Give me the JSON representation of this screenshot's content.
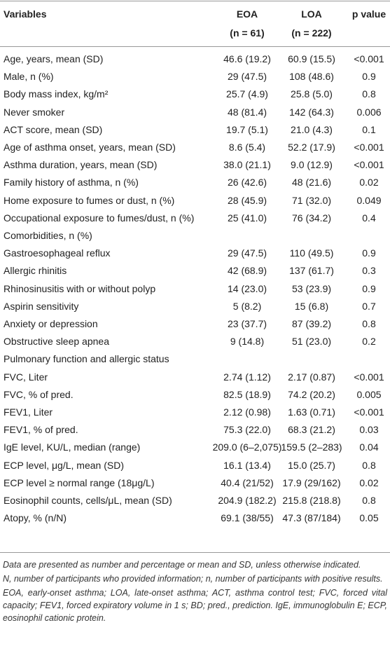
{
  "table": {
    "header": [
      "Variables",
      "EOA",
      "(n = 61)",
      "LOA",
      "(n = 222)",
      "p value"
    ],
    "rows": [
      [
        "Age, years, mean (SD)",
        "46.6 (19.2)",
        "60.9 (15.5)",
        "<0.001"
      ],
      [
        "Male, n (%)",
        "29 (47.5)",
        "108 (48.6)",
        "0.9"
      ],
      [
        "Body mass index, kg/m²",
        "25.7 (4.9)",
        "25.8 (5.0)",
        "0.8"
      ],
      [
        "Never smoker",
        "48 (81.4)",
        "142 (64.3)",
        "0.006"
      ],
      [
        "ACT score, mean (SD)",
        "19.7 (5.1)",
        "21.0 (4.3)",
        "0.1"
      ],
      [
        "Age of asthma onset, years, mean (SD)",
        "8.6 (5.4)",
        "52.2 (17.9)",
        "<0.001"
      ],
      [
        "Asthma duration, years, mean (SD)",
        "38.0 (21.1)",
        "9.0 (12.9)",
        "<0.001"
      ],
      [
        "Family history of asthma, n (%)",
        "26 (42.6)",
        "48 (21.6)",
        "0.02"
      ],
      [
        "Home exposure to fumes or dust, n (%)",
        "28 (45.9)",
        "71 (32.0)",
        "0.049"
      ],
      [
        "Occupational exposure to fumes/dust, n (%)",
        "25 (41.0)",
        "76 (34.2)",
        "0.4"
      ],
      [
        "Comorbidities, n (%)"
      ],
      [
        "Gastroesophageal reflux",
        "29 (47.5)",
        "110 (49.5)",
        "0.9"
      ],
      [
        "Allergic rhinitis",
        "42 (68.9)",
        "137 (61.7)",
        "0.3"
      ],
      [
        "Rhinosinusitis with or without polyp",
        "14 (23.0)",
        "53 (23.9)",
        "0.9"
      ],
      [
        "Aspirin sensitivity",
        "5 (8.2)",
        "15 (6.8)",
        "0.7"
      ],
      [
        "Anxiety or depression",
        "23 (37.7)",
        "87 (39.2)",
        "0.8"
      ],
      [
        "Obstructive sleep apnea",
        "9 (14.8)",
        "51 (23.0)",
        "0.2"
      ],
      [
        "Pulmonary function and allergic status"
      ],
      [
        "FVC, Liter",
        "2.74 (1.12)",
        "2.17 (0.87)",
        "<0.001"
      ],
      [
        "FVC, % of pred.",
        "82.5 (18.9)",
        "74.2 (20.2)",
        "0.005"
      ],
      [
        "FEV1, Liter",
        "2.12 (0.98)",
        "1.63 (0.71)",
        "<0.001"
      ],
      [
        "FEV1, % of pred.",
        "75.3 (22.0)",
        "68.3 (21.2)",
        "0.03"
      ],
      [
        "IgE level, KU/L, median (range)",
        "209.0 (6–2,075)",
        "159.5 (2–283)",
        "0.04"
      ],
      [
        "ECP level, μg/L, mean (SD)",
        "16.1 (13.4)",
        "15.0 (25.7)",
        "0.8"
      ],
      [
        "ECP level ≥ normal range (18μg/L)",
        "40.4 (21/52)",
        "17.9 (29/162)",
        "0.02"
      ],
      [
        "Eosinophil counts, cells/μL, mean (SD)",
        "204.9 (182.2)",
        "215.8 (218.8)",
        "0.8"
      ],
      [
        "Atopy, % (n/N)",
        "69.1 (38/55)",
        "47.3 (87/184)",
        "0.05"
      ]
    ],
    "notes": [
      "Data are presented as number and percentage or mean and SD, unless otherwise indicated.",
      "N, number of participants who provided information; n, number of participants with positive results.",
      "EOA, early-onset asthma; LOA, late-onset asthma; ACT, asthma control test; FVC, forced vital capacity; FEV1, forced expiratory volume in 1 s; BD; pred., prediction. IgE, immunoglobulin E; ECP, eosinophil cationic protein."
    ]
  }
}
